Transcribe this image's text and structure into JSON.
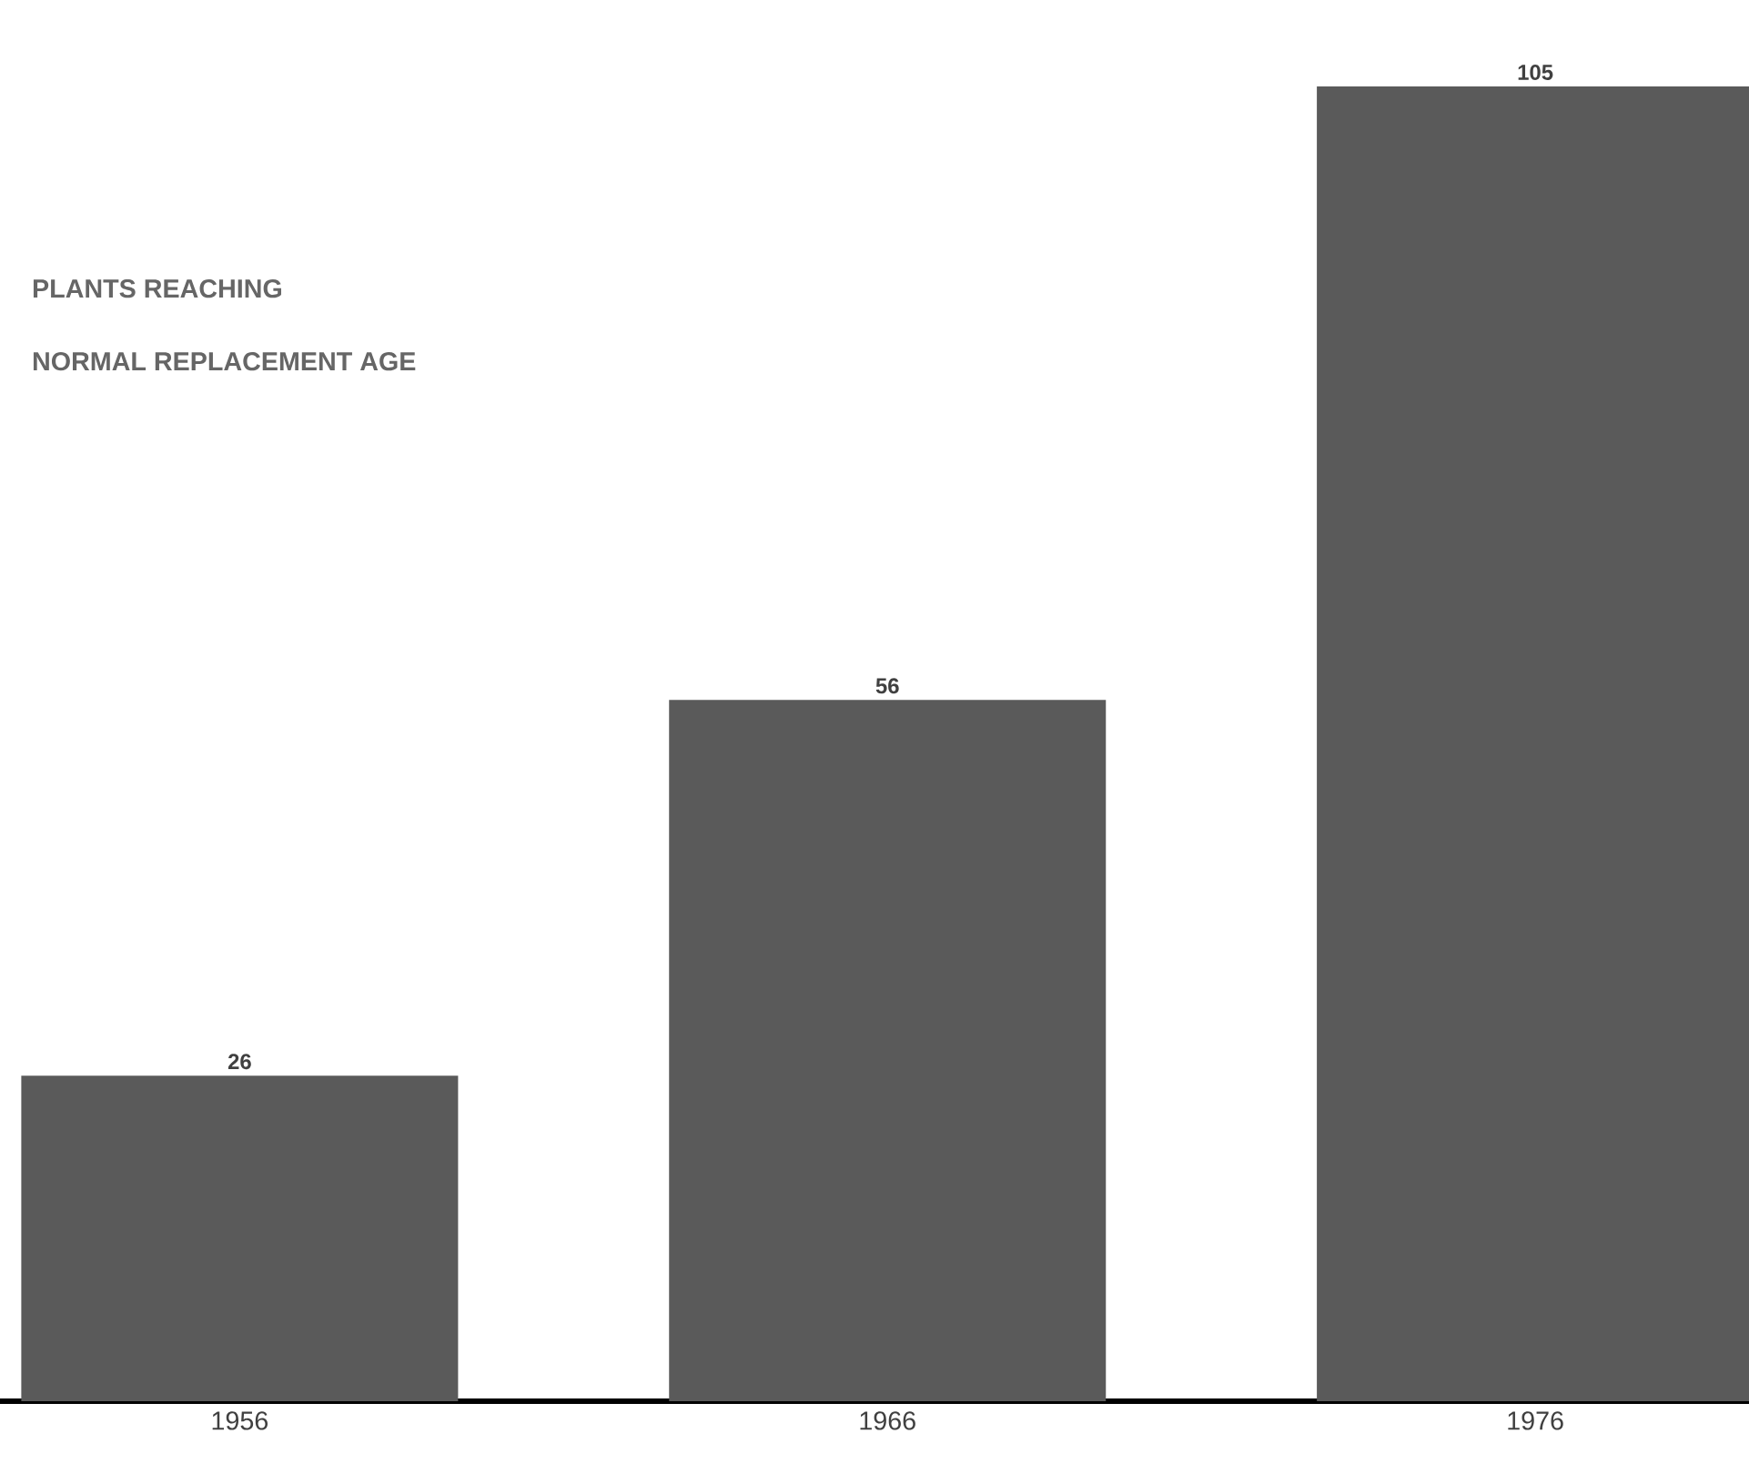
{
  "chart_data": {
    "type": "bar",
    "title": "PLANTS REACHING",
    "subtitle": "NORMAL REPLACEMENT AGE",
    "categories": [
      "1956",
      "1966",
      "1976"
    ],
    "values": [
      26,
      56,
      105
    ],
    "color": "#5a5a5a",
    "data_labels": true
  }
}
